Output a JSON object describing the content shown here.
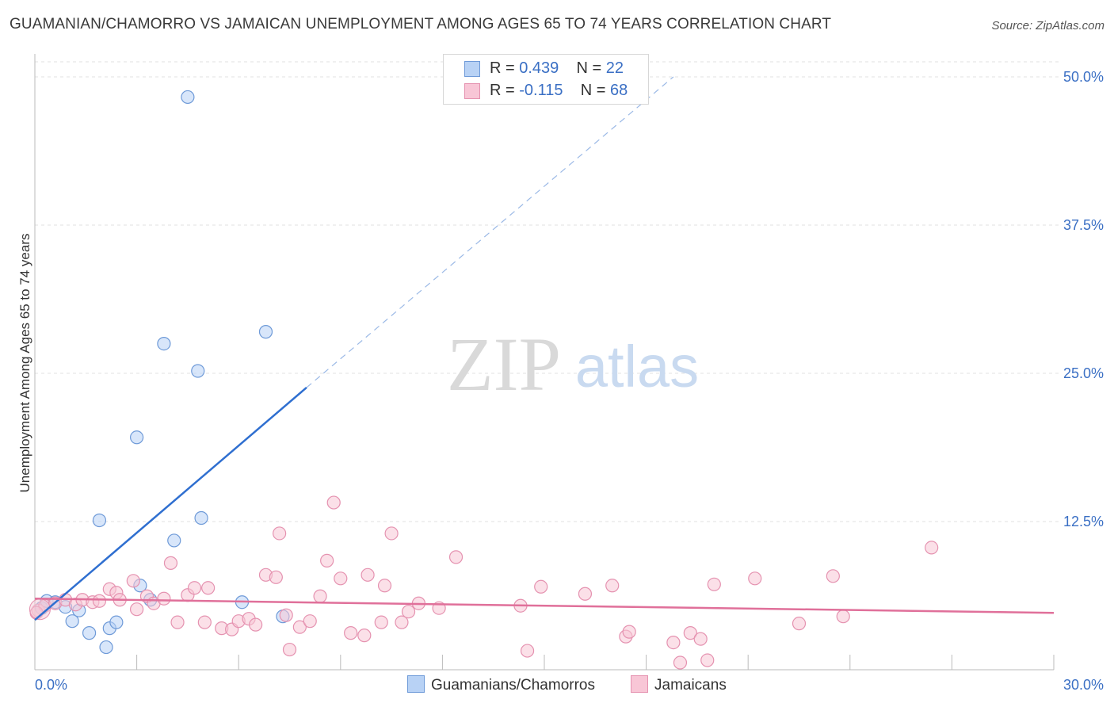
{
  "title": "GUAMANIAN/CHAMORRO VS JAMAICAN UNEMPLOYMENT AMONG AGES 65 TO 74 YEARS CORRELATION CHART",
  "source": "Source: ZipAtlas.com",
  "watermark": {
    "zip": "ZIP",
    "atlas": "atlas"
  },
  "legend": {
    "r_label": "R =",
    "n_label": "N =",
    "series": [
      {
        "name": "Guamanians/Chamorros",
        "r": "0.439",
        "n": "22",
        "fill": "#b8d2f5",
        "stroke": "#6e9ad8"
      },
      {
        "name": "Jamaicans",
        "r": "-0.115",
        "n": "68",
        "fill": "#f8c6d6",
        "stroke": "#e592b0"
      }
    ]
  },
  "chart_data": {
    "type": "scatter",
    "title": "GUAMANIAN/CHAMORRO VS JAMAICAN UNEMPLOYMENT AMONG AGES 65 TO 74 YEARS CORRELATION CHART",
    "ylabel": "Unemployment Among Ages 65 to 74 years",
    "xlim": [
      0,
      30
    ],
    "ylim": [
      0,
      50
    ],
    "x_tick_labels": [
      {
        "value": 0,
        "label": "0.0%"
      },
      {
        "value": 30,
        "label": "30.0%"
      }
    ],
    "y_tick_labels": [
      {
        "value": 12.5,
        "label": "12.5%"
      },
      {
        "value": 25,
        "label": "25.0%"
      },
      {
        "value": 37.5,
        "label": "37.5%"
      },
      {
        "value": 50,
        "label": "50.0%"
      }
    ],
    "x_minor_ticks": [
      3,
      6,
      9,
      12,
      15,
      18,
      21,
      24,
      27,
      30
    ],
    "series": [
      {
        "name": "Guamanians/Chamorros",
        "color": "#6e9ad8",
        "fill": "#b8d2f5",
        "trend": {
          "x0": 0,
          "y0": 4.2,
          "x1": 8.0,
          "y1": 23.8,
          "dash_x1": 18.8,
          "dash_y1": 50.0,
          "line_color": "#2f6fd0"
        },
        "points": [
          [
            0.2,
            5.2
          ],
          [
            0.35,
            5.8
          ],
          [
            0.6,
            5.7
          ],
          [
            0.9,
            5.3
          ],
          [
            1.1,
            4.1
          ],
          [
            1.3,
            5.0
          ],
          [
            1.6,
            3.1
          ],
          [
            1.9,
            12.6
          ],
          [
            2.1,
            1.9
          ],
          [
            2.2,
            3.5
          ],
          [
            2.4,
            4.0
          ],
          [
            3.0,
            19.6
          ],
          [
            3.1,
            7.1
          ],
          [
            3.4,
            5.9
          ],
          [
            3.8,
            27.5
          ],
          [
            4.1,
            10.9
          ],
          [
            4.5,
            48.3
          ],
          [
            4.8,
            25.2
          ],
          [
            4.9,
            12.8
          ],
          [
            6.1,
            5.7
          ],
          [
            6.8,
            28.5
          ],
          [
            7.3,
            4.5
          ]
        ]
      },
      {
        "name": "Jamaicans",
        "color": "#e592b0",
        "fill": "#f8c6d6",
        "trend": {
          "x0": 0,
          "y0": 6.0,
          "x1": 30,
          "y1": 4.8,
          "line_color": "#e0709a"
        },
        "points": [
          [
            0.1,
            5.0
          ],
          [
            0.3,
            5.4
          ],
          [
            0.6,
            5.6
          ],
          [
            0.9,
            5.9
          ],
          [
            1.2,
            5.5
          ],
          [
            1.4,
            5.9
          ],
          [
            1.7,
            5.7
          ],
          [
            1.9,
            5.8
          ],
          [
            2.2,
            6.8
          ],
          [
            2.4,
            6.5
          ],
          [
            2.5,
            5.9
          ],
          [
            2.9,
            7.5
          ],
          [
            3.0,
            5.1
          ],
          [
            3.3,
            6.2
          ],
          [
            3.5,
            5.6
          ],
          [
            3.8,
            6.0
          ],
          [
            4.0,
            9.0
          ],
          [
            4.2,
            4.0
          ],
          [
            4.5,
            6.3
          ],
          [
            4.7,
            6.9
          ],
          [
            5.0,
            4.0
          ],
          [
            5.1,
            6.9
          ],
          [
            5.5,
            3.5
          ],
          [
            5.8,
            3.4
          ],
          [
            6.0,
            4.1
          ],
          [
            6.3,
            4.3
          ],
          [
            6.5,
            3.8
          ],
          [
            6.8,
            8.0
          ],
          [
            7.1,
            7.8
          ],
          [
            7.2,
            11.5
          ],
          [
            7.4,
            4.6
          ],
          [
            7.5,
            1.7
          ],
          [
            7.8,
            3.6
          ],
          [
            8.1,
            4.1
          ],
          [
            8.4,
            6.2
          ],
          [
            8.6,
            9.2
          ],
          [
            8.8,
            14.1
          ],
          [
            9.0,
            7.7
          ],
          [
            9.3,
            3.1
          ],
          [
            9.7,
            2.9
          ],
          [
            9.8,
            8.0
          ],
          [
            10.2,
            4.0
          ],
          [
            10.3,
            7.1
          ],
          [
            10.5,
            11.5
          ],
          [
            10.8,
            4.0
          ],
          [
            11.0,
            4.9
          ],
          [
            11.3,
            5.6
          ],
          [
            11.9,
            5.2
          ],
          [
            12.4,
            9.5
          ],
          [
            14.3,
            5.4
          ],
          [
            14.5,
            1.6
          ],
          [
            14.9,
            7.0
          ],
          [
            16.2,
            6.4
          ],
          [
            17.0,
            7.1
          ],
          [
            17.4,
            2.8
          ],
          [
            17.5,
            3.2
          ],
          [
            18.8,
            2.3
          ],
          [
            19.0,
            0.6
          ],
          [
            19.3,
            3.1
          ],
          [
            19.6,
            2.6
          ],
          [
            19.8,
            0.8
          ],
          [
            20.0,
            7.2
          ],
          [
            21.2,
            7.7
          ],
          [
            22.5,
            3.9
          ],
          [
            23.5,
            7.9
          ],
          [
            23.8,
            4.5
          ],
          [
            26.4,
            10.3
          ],
          [
            0.05,
            4.8
          ]
        ]
      }
    ]
  }
}
